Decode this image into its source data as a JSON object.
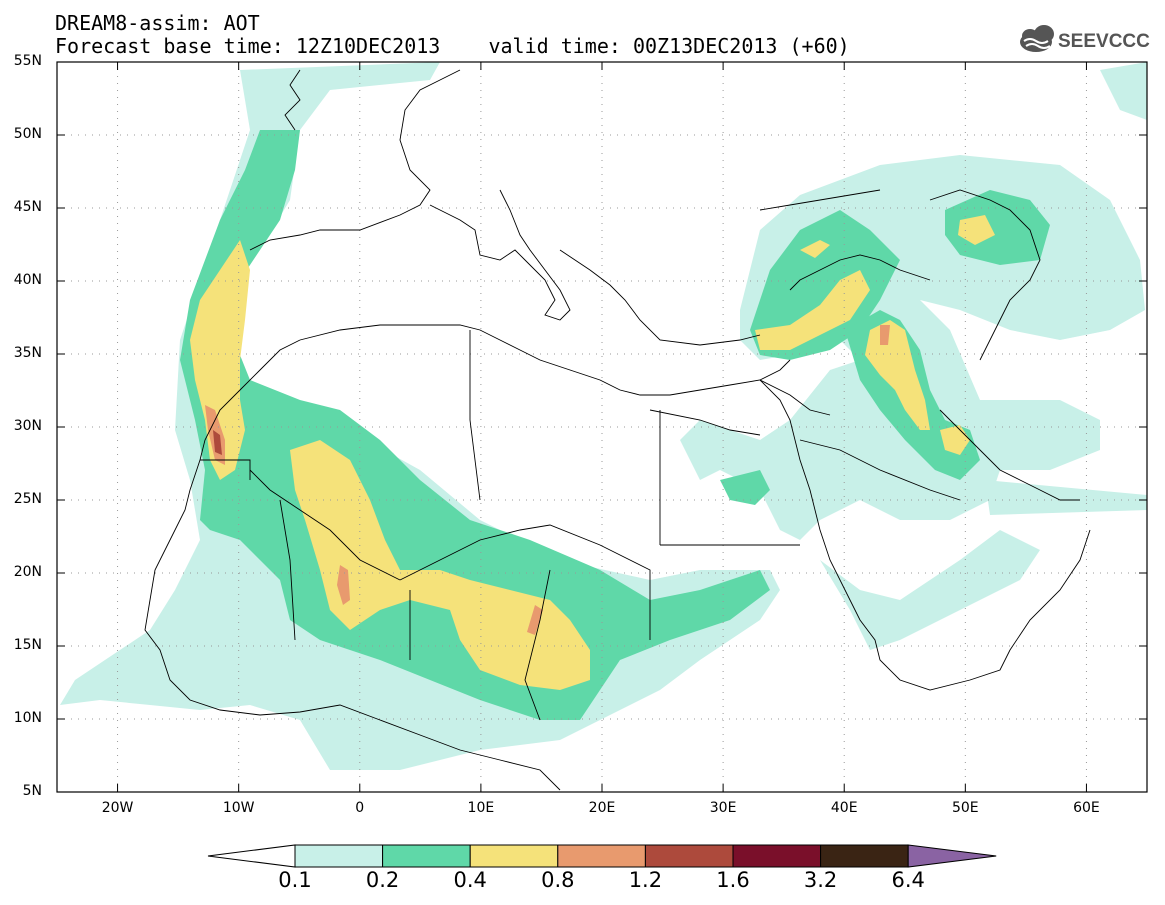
{
  "header": {
    "title_line1": "DREAM8-assim: AOT",
    "title_line2": "Forecast base time: 12Z10DEC2013    valid time: 00Z13DEC2013 (+60)",
    "logo_text": "SEEVCCC"
  },
  "map": {
    "lat_labels": [
      "55N",
      "50N",
      "45N",
      "40N",
      "35N",
      "30N",
      "25N",
      "20N",
      "15N",
      "10N",
      "5N"
    ],
    "lon_labels": [
      "20W",
      "10W",
      "0",
      "10E",
      "20E",
      "30E",
      "40E",
      "50E",
      "60E"
    ],
    "lat_range": [
      5,
      55
    ],
    "lon_range": [
      -25,
      65
    ],
    "grid": "dotted",
    "variable": "aerosol optical thickness"
  },
  "legend": {
    "values": [
      "0.1",
      "0.2",
      "0.4",
      "0.8",
      "1.2",
      "1.6",
      "3.2",
      "6.4"
    ],
    "colors": [
      "#ffffff",
      "#c8f0e8",
      "#5fd8a8",
      "#f5e27a",
      "#e89a6e",
      "#ad4a3c",
      "#7a0f2a",
      "#3a2414",
      "#8a63a3"
    ]
  }
}
